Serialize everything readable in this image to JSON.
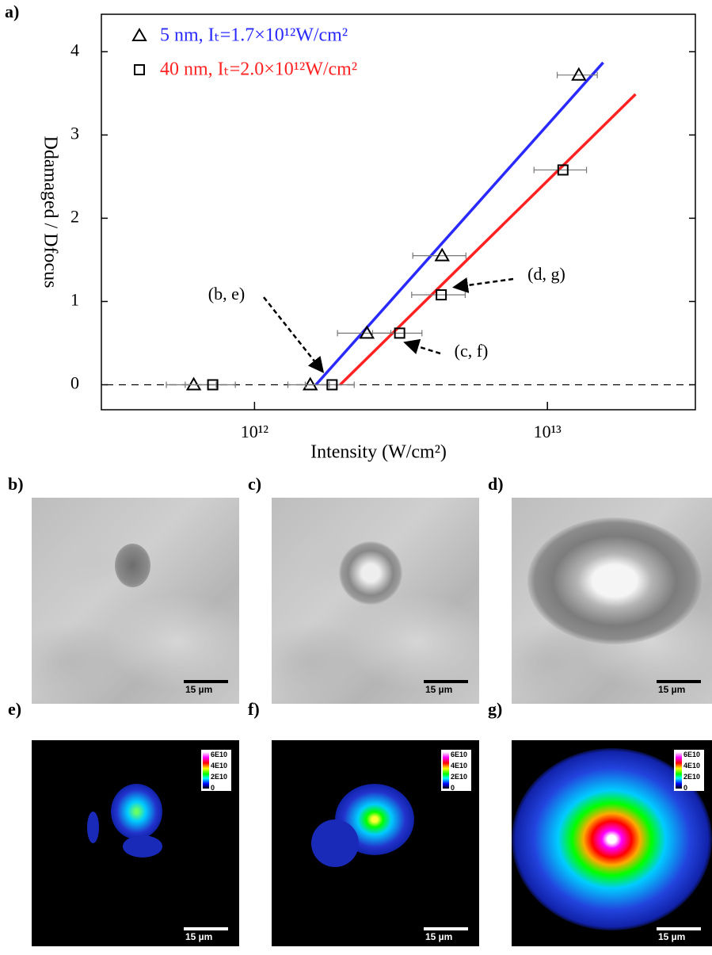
{
  "figure_label": "a)",
  "chart_data": {
    "type": "scatter",
    "xlabel": "Intensity (W/cm²)",
    "ylabel": "Ddamaged / Dfocus",
    "xscale": "log",
    "xlim": [
      300000000000.0,
      32000000000000.0
    ],
    "ylim": [
      -0.3,
      4.45
    ],
    "xticks": [
      {
        "value": 1000000000000.0,
        "label": "10¹²"
      },
      {
        "value": 10000000000000.0,
        "label": "10¹³"
      }
    ],
    "yticks": [
      0,
      1,
      2,
      3,
      4
    ],
    "hlines": [
      0
    ],
    "legend": "upper left",
    "series": [
      {
        "name": "5 nm, Iₜ=1.7×10¹²W/cm²",
        "color": "#2a2aff",
        "marker": "triangle",
        "x": [
          620000000000.0,
          1550000000000.0,
          2420000000000.0,
          4370000000000.0,
          12800000000000.0
        ],
        "values": [
          0,
          0,
          0.62,
          1.55,
          3.72
        ],
        "xerr": [
          120000000000.0,
          250000000000.0,
          500000000000.0,
          900000000000.0,
          2000000000000.0
        ],
        "fit": {
          "x": [
            1620000000000.0,
            15500000000000.0
          ],
          "values": [
            0,
            3.87
          ]
        }
      },
      {
        "name": "40 nm, Iₜ=2.0×10¹²W/cm²",
        "color": "#ff2222",
        "marker": "square",
        "x": [
          720000000000.0,
          1840000000000.0,
          3130000000000.0,
          4340000000000.0,
          11300000000000.0
        ],
        "values": [
          0,
          0,
          0.62,
          1.08,
          2.58
        ],
        "xerr": [
          140000000000.0,
          350000000000.0,
          600000000000.0,
          900000000000.0,
          2300000000000.0
        ],
        "fit": {
          "x": [
            1960000000000.0,
            20000000000000.0
          ],
          "values": [
            0,
            3.49
          ]
        }
      }
    ],
    "annotations": [
      {
        "text": "(b, e)"
      },
      {
        "text": "(d, g)"
      },
      {
        "text": "(c, f)"
      }
    ]
  },
  "panels": [
    {
      "label": "b)",
      "scale_bar": "15 µm"
    },
    {
      "label": "c)",
      "scale_bar": "15 µm"
    },
    {
      "label": "d)",
      "scale_bar": "15 µm"
    },
    {
      "label": "e)",
      "scale_bar": "15 µm"
    },
    {
      "label": "f)",
      "scale_bar": "15 µm"
    },
    {
      "label": "g)",
      "scale_bar": "15 µm"
    }
  ],
  "colorbar_labels": [
    "6E10",
    "4E10",
    "2E10",
    "0"
  ]
}
